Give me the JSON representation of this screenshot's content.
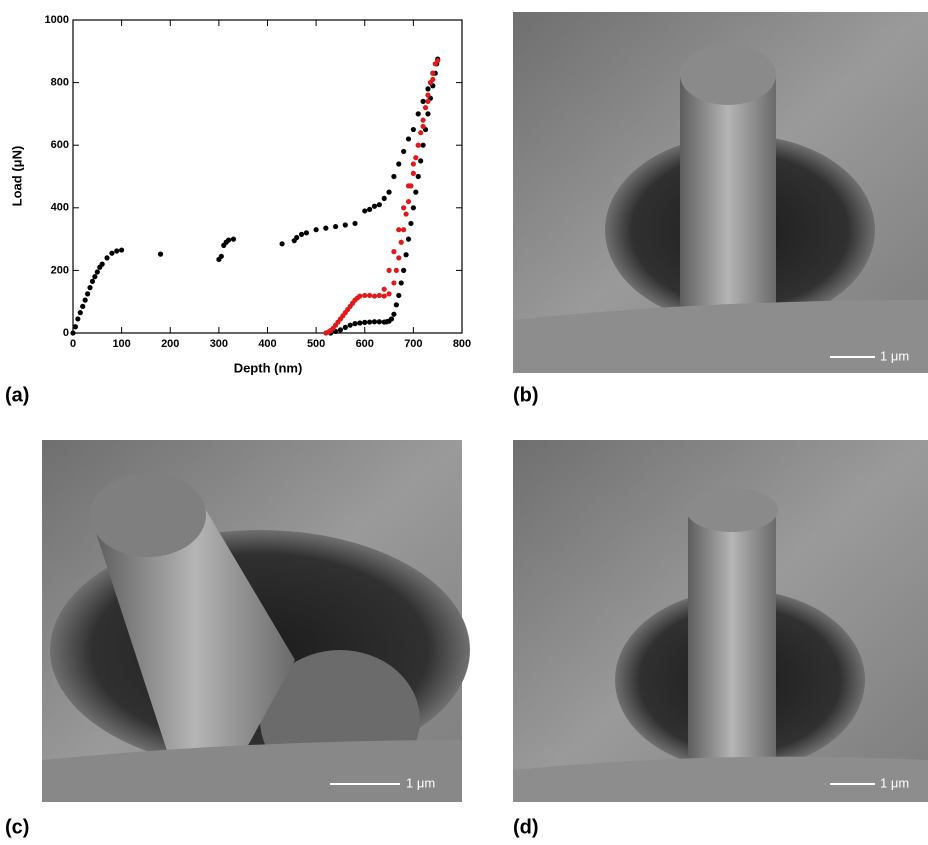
{
  "chart_data": {
    "type": "scatter",
    "xlabel": "Depth (nm)",
    "ylabel": "Load (μN)",
    "xlim": [
      0,
      800
    ],
    "ylim": [
      0,
      1000
    ],
    "xticks": [
      0,
      100,
      200,
      300,
      400,
      500,
      600,
      700,
      800
    ],
    "yticks": [
      0,
      200,
      400,
      600,
      800,
      1000
    ],
    "series": [
      {
        "color": "#000000",
        "x": [
          0,
          5,
          10,
          15,
          20,
          25,
          30,
          35,
          40,
          45,
          50,
          55,
          60,
          70,
          80,
          90,
          100,
          180,
          300,
          305,
          310,
          315,
          320,
          330,
          430,
          455,
          460,
          470,
          480,
          500,
          520,
          540,
          560,
          580,
          600,
          610,
          620,
          630,
          640,
          650,
          660,
          670,
          680,
          690,
          700,
          710,
          720,
          730,
          740,
          750,
          748,
          745,
          740,
          735,
          730,
          725,
          720,
          715,
          710,
          705,
          700,
          695,
          690,
          685,
          680,
          675,
          670,
          665,
          660,
          655,
          650,
          645,
          640,
          630,
          620,
          610,
          600,
          590,
          580,
          570,
          560,
          550,
          540,
          530
        ],
        "values": [
          0,
          20,
          45,
          65,
          85,
          105,
          125,
          145,
          165,
          180,
          195,
          210,
          220,
          240,
          255,
          262,
          265,
          252,
          235,
          245,
          280,
          290,
          297,
          300,
          285,
          295,
          305,
          315,
          320,
          330,
          335,
          340,
          345,
          350,
          390,
          395,
          405,
          410,
          430,
          450,
          500,
          540,
          580,
          620,
          650,
          700,
          740,
          780,
          830,
          875,
          860,
          830,
          790,
          750,
          700,
          650,
          600,
          550,
          500,
          450,
          400,
          350,
          300,
          250,
          200,
          160,
          120,
          90,
          60,
          45,
          38,
          36,
          35,
          36,
          36,
          35,
          34,
          32,
          30,
          25,
          18,
          10,
          5,
          0
        ]
      },
      {
        "color": "#e0191b",
        "x": [
          520,
          525,
          530,
          535,
          540,
          545,
          550,
          555,
          560,
          565,
          570,
          575,
          580,
          585,
          590,
          600,
          610,
          620,
          630,
          640,
          650,
          660,
          670,
          680,
          690,
          700,
          710,
          720,
          730,
          740,
          750,
          745,
          740,
          735,
          730,
          725,
          720,
          715,
          710,
          705,
          700,
          695,
          690,
          685,
          680,
          675,
          670,
          665,
          660,
          650,
          640
        ],
        "values": [
          0,
          3,
          8,
          15,
          25,
          35,
          45,
          55,
          65,
          75,
          85,
          95,
          105,
          112,
          118,
          120,
          120,
          118,
          120,
          140,
          200,
          260,
          330,
          400,
          470,
          540,
          600,
          660,
          740,
          810,
          870,
          860,
          830,
          800,
          760,
          720,
          680,
          640,
          600,
          560,
          510,
          470,
          420,
          380,
          330,
          290,
          240,
          200,
          160,
          125,
          118
        ]
      }
    ]
  },
  "panels": {
    "labels": [
      "(a)",
      "(b)",
      "(c)",
      "(d)"
    ],
    "scale_bars": [
      "1 μm",
      "1 μm",
      "1 μm"
    ]
  }
}
